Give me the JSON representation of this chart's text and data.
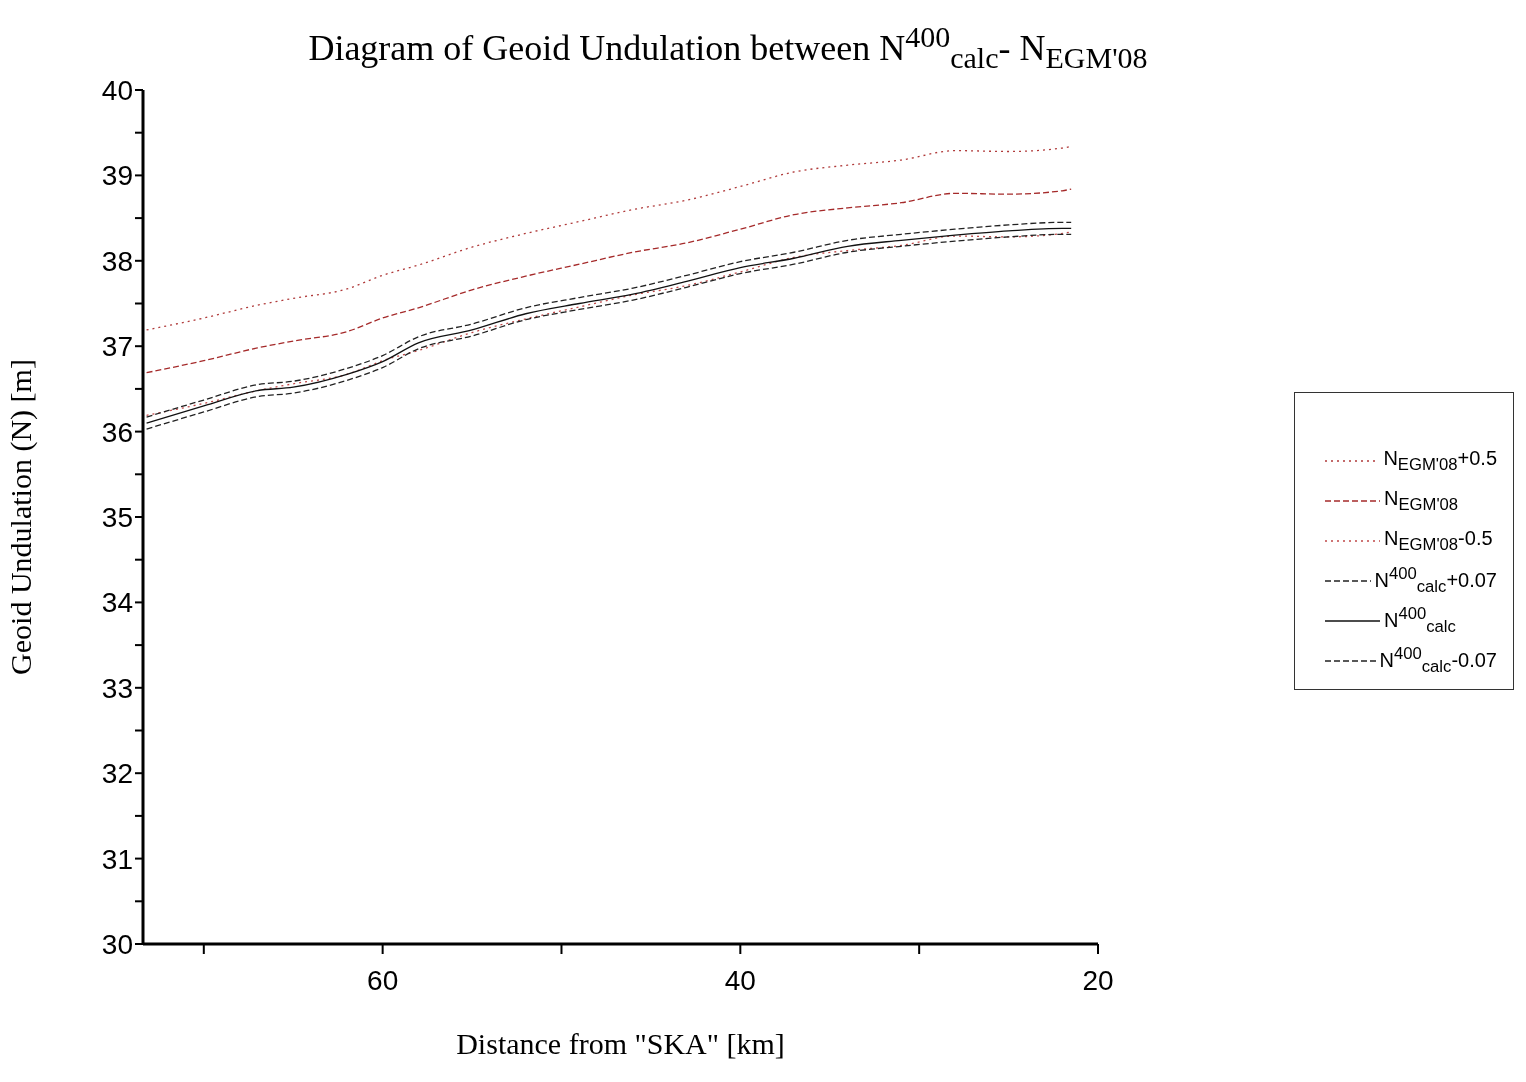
{
  "chart_data": {
    "type": "line",
    "title": "Diagram of Geoid Undulation between N$^{400}$$_{calc}$- N$_{EGM'08}$",
    "xlabel": "Distance from \"SKA\" [km]",
    "ylabel": "Geoid Undulation (N) [m]",
    "x": [
      73.2,
      70,
      67,
      65,
      62,
      60,
      58,
      55,
      52,
      49,
      46,
      43,
      40,
      37,
      34,
      31,
      28,
      25,
      22,
      21.5
    ],
    "series": [
      {
        "name": "N$_{EGM'08}$+0.5",
        "color": "#b03a3a",
        "line_style": "dotted",
        "values": [
          37.19,
          37.33,
          37.48,
          37.56,
          37.67,
          37.83,
          37.95,
          38.16,
          38.32,
          38.46,
          38.6,
          38.71,
          38.87,
          39.04,
          39.12,
          39.18,
          39.29,
          39.28,
          39.32,
          39.34
        ]
      },
      {
        "name": "N$_{EGM'08}$",
        "color": "#a52a2a",
        "line_style": "dashed",
        "values": [
          36.69,
          36.83,
          36.98,
          37.06,
          37.17,
          37.33,
          37.45,
          37.66,
          37.82,
          37.96,
          38.1,
          38.21,
          38.37,
          38.54,
          38.62,
          38.68,
          38.79,
          38.78,
          38.82,
          38.84
        ]
      },
      {
        "name": "N$_{EGM'08}$-0.5",
        "color": "#c04848",
        "line_style": "dotted",
        "values": [
          36.19,
          36.33,
          36.48,
          36.56,
          36.67,
          36.83,
          36.95,
          37.16,
          37.32,
          37.46,
          37.6,
          37.71,
          37.87,
          38.04,
          38.12,
          38.18,
          38.29,
          38.28,
          38.32,
          38.34
        ]
      },
      {
        "name": "N$^{400}$$_{calc}$+0.07",
        "color": "#222222",
        "line_style": "dashed",
        "values": [
          36.17,
          36.37,
          36.55,
          36.59,
          36.74,
          36.89,
          37.11,
          37.26,
          37.45,
          37.57,
          37.68,
          37.83,
          37.99,
          38.1,
          38.24,
          38.31,
          38.37,
          38.42,
          38.45,
          38.45
        ]
      },
      {
        "name": "N$^{400}$$_{calc}$",
        "color": "#111111",
        "line_style": "solid",
        "values": [
          36.1,
          36.3,
          36.48,
          36.52,
          36.67,
          36.82,
          37.04,
          37.19,
          37.38,
          37.5,
          37.61,
          37.76,
          37.92,
          38.03,
          38.17,
          38.24,
          38.3,
          38.35,
          38.38,
          38.38
        ]
      },
      {
        "name": "N$^{400}$$_{calc}$-0.07",
        "color": "#222222",
        "line_style": "dashed",
        "values": [
          36.03,
          36.23,
          36.41,
          36.45,
          36.6,
          36.75,
          36.97,
          37.12,
          37.31,
          37.43,
          37.54,
          37.69,
          37.85,
          37.96,
          38.1,
          38.17,
          38.23,
          38.28,
          38.31,
          38.31
        ]
      }
    ],
    "xlim": [
      73.4,
      20
    ],
    "xticks": [
      {
        "value": 70,
        "label": null
      },
      60,
      {
        "value": 50,
        "label": null
      },
      40,
      {
        "value": 30,
        "label": null
      },
      20
    ],
    "ylim": [
      30,
      40
    ],
    "yticks": [
      30,
      {
        "value": 30.5,
        "label": null
      },
      31,
      {
        "value": 31.5,
        "label": null
      },
      32,
      {
        "value": 32.5,
        "label": null
      },
      33,
      {
        "value": 33.5,
        "label": null
      },
      34,
      {
        "value": 34.5,
        "label": null
      },
      35,
      {
        "value": 35.5,
        "label": null
      },
      36,
      {
        "value": 36.5,
        "label": null
      },
      37,
      {
        "value": 37.5,
        "label": null
      },
      38,
      {
        "value": 38.5,
        "label": null
      },
      39,
      {
        "value": 39.5,
        "label": null
      },
      40
    ],
    "grid": false,
    "legend": "right",
    "marker": "none"
  }
}
